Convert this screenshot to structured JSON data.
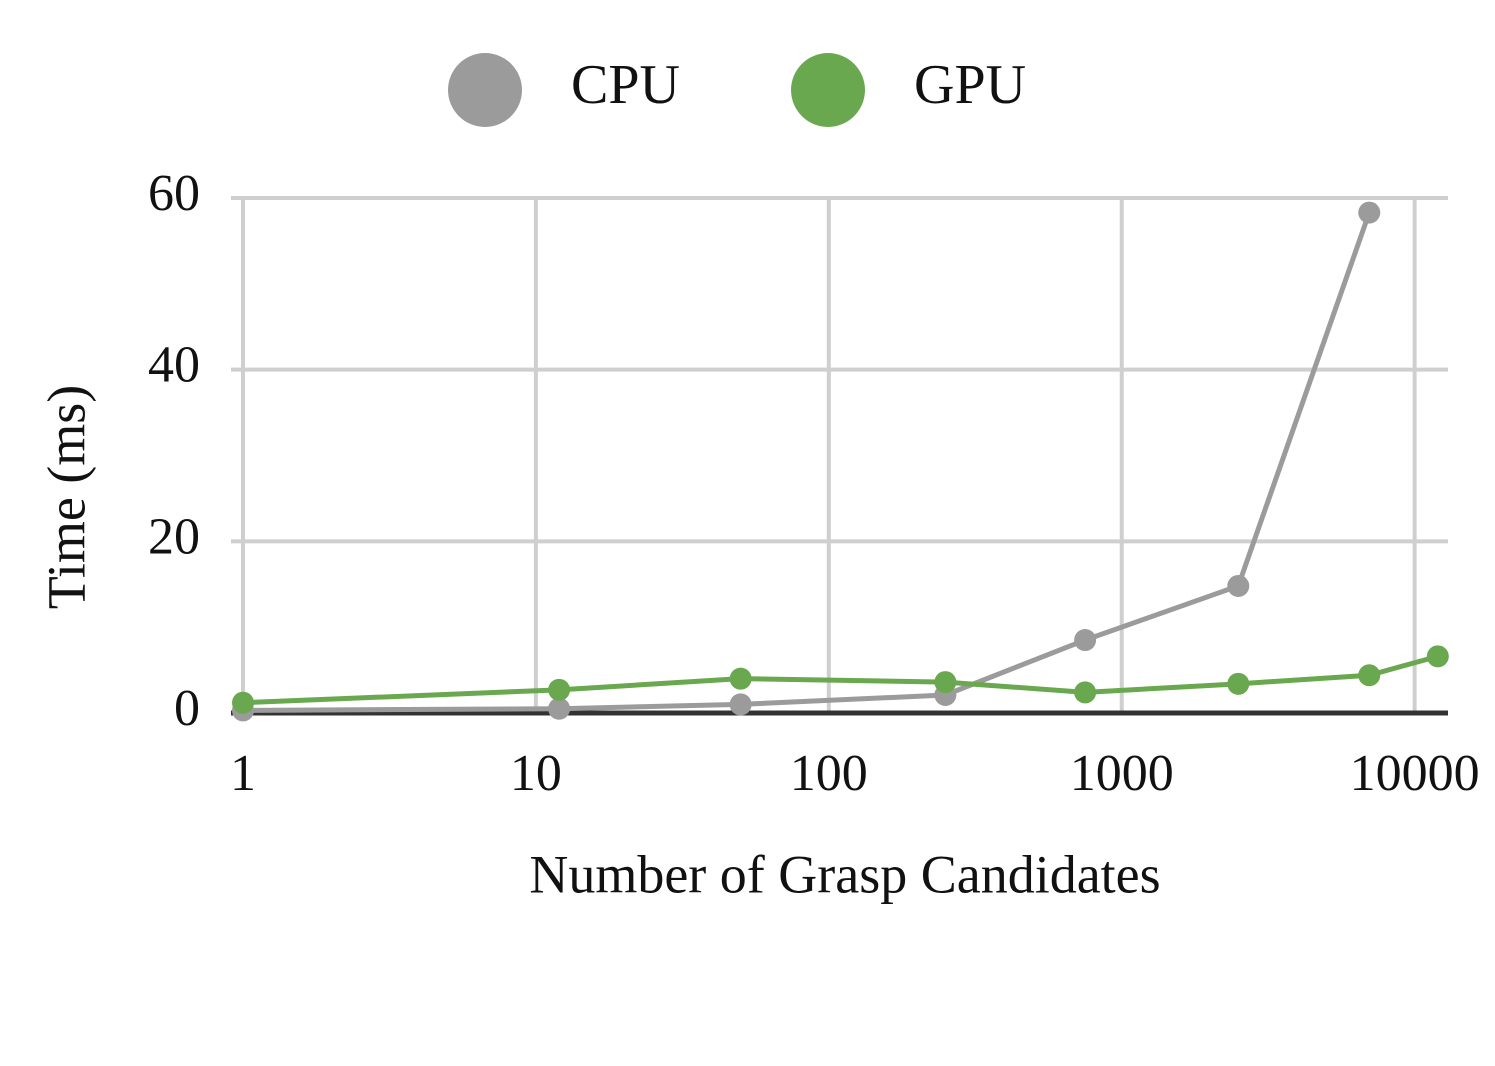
{
  "chart_data": {
    "type": "line",
    "x_label": "Number of Grasp Candidates",
    "y_label": "Time (ms)",
    "x": [
      1,
      12,
      50,
      250,
      750,
      2500,
      7000,
      12000
    ],
    "series": [
      {
        "name": "CPU",
        "color": "#9b9b9b",
        "values": [
          0.3,
          0.5,
          1.0,
          2.1,
          8.5,
          14.8,
          58.3,
          null
        ]
      },
      {
        "name": "GPU",
        "color": "#6aa84f",
        "values": [
          1.2,
          2.7,
          4.0,
          3.6,
          2.4,
          3.4,
          4.4,
          6.6
        ]
      }
    ],
    "xscale": "log",
    "xlim": [
      0.91,
      13000
    ],
    "xticks": [
      1,
      10,
      100,
      1000,
      10000
    ],
    "ylim": [
      0,
      60
    ],
    "yticks": [
      0,
      20,
      40,
      60
    ],
    "grid": true,
    "legend": "top"
  }
}
